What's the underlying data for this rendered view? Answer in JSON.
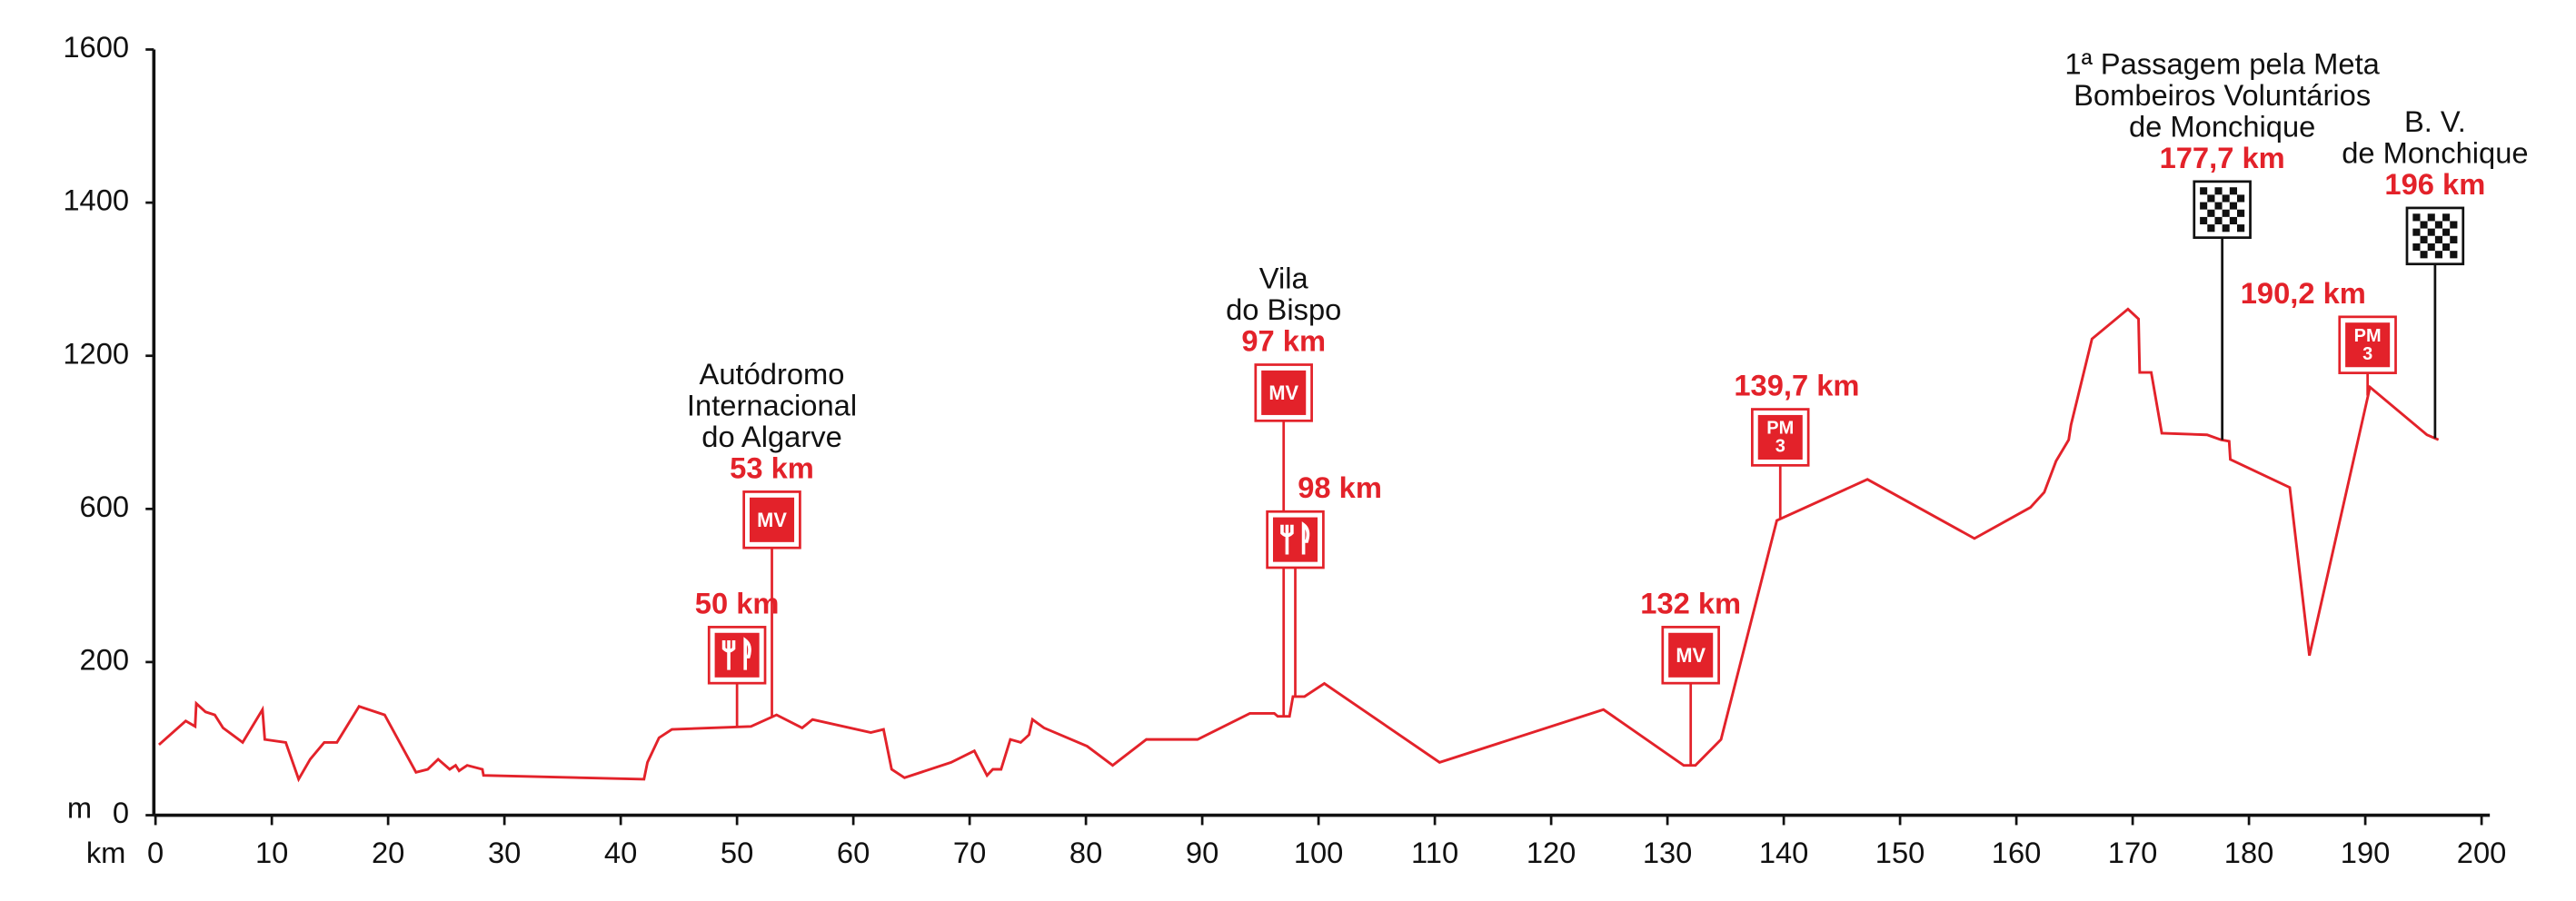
{
  "chart_data": {
    "type": "line",
    "color": "#e3222a",
    "y_label": "m",
    "x_label": "km",
    "ylim": [
      0,
      1600
    ],
    "yticks": [
      0,
      200,
      600,
      1200,
      1400,
      1600
    ],
    "xlim": [
      0,
      200
    ],
    "xticks": [
      0,
      10,
      20,
      30,
      40,
      50,
      60,
      70,
      80,
      90,
      100,
      110,
      120,
      130,
      140,
      150,
      160,
      170,
      180,
      190,
      200
    ],
    "x": [
      0.3,
      2.6,
      3.4,
      3.5,
      4.3,
      5.1,
      5.8,
      7.5,
      9.2,
      9.4,
      11.2,
      12.3,
      13.3,
      14.5,
      15.6,
      17.5,
      19.7,
      22.4,
      23.4,
      24.3,
      25.3,
      25.8,
      26.1,
      26.8,
      28.1,
      28.2,
      42.0,
      42.3,
      43.3,
      44.4,
      51.2,
      53.4,
      55.6,
      56.5,
      61.5,
      62.6,
      63.3,
      64.4,
      68.4,
      70.4,
      71.5,
      72.0,
      72.7,
      73.5,
      74.4,
      75.1,
      75.4,
      76.4,
      80.1,
      82.3,
      85.2,
      89.6,
      94.1,
      96.2,
      96.5,
      97.5,
      97.8,
      98.8,
      100.5,
      110.4,
      124.5,
      131.4,
      132.4,
      134.6,
      139.4,
      147.2,
      156.4,
      161.2,
      162.4,
      163.4,
      164.5,
      164.7,
      166.5,
      169.6,
      170.5,
      170.6,
      171.6,
      172.5,
      176.4,
      177.6,
      178.3,
      178.4,
      183.5,
      185.2,
      190.4,
      195.3,
      196.3
    ],
    "values": [
      92,
      123,
      116,
      146,
      135,
      131,
      114,
      95,
      138,
      99,
      95,
      47,
      73,
      95,
      95,
      142,
      131,
      56,
      60,
      73,
      60,
      65,
      58,
      65,
      60,
      52,
      47,
      69,
      101,
      112,
      116,
      131,
      114,
      125,
      108,
      112,
      60,
      49,
      69,
      84,
      52,
      60,
      60,
      99,
      95,
      105,
      125,
      114,
      90,
      65,
      99,
      99,
      133,
      133,
      129,
      129,
      155,
      155,
      172,
      69,
      138,
      65,
      65,
      99,
      570,
      716,
      523,
      606,
      665,
      787,
      871,
      929,
      1222,
      1261,
      1248,
      1135,
      1135,
      897,
      890,
      871,
      865,
      794,
      684,
      217,
      1077,
      890,
      871
    ],
    "markers": [
      {
        "km": 50,
        "label": "50 km",
        "symbol": "food"
      },
      {
        "km": 53,
        "label": "53 km",
        "badge": [
          "MV"
        ],
        "names": [
          "Autódromo",
          "Internacional",
          "do Algarve"
        ]
      },
      {
        "km": 97,
        "label": "97 km",
        "badge": [
          "MV"
        ],
        "names": [
          "Vila",
          "do Bispo"
        ]
      },
      {
        "km": 98,
        "label": "98 km",
        "symbol": "food"
      },
      {
        "km": 132,
        "label": "132 km",
        "badge": [
          "MV"
        ]
      },
      {
        "km": 139.7,
        "label": "139,7 km",
        "badge": [
          "PM",
          "3"
        ]
      },
      {
        "km": 177.7,
        "label": "177,7 km",
        "symbol": "flag",
        "names": [
          "1ª Passagem pela Meta",
          "Bombeiros Voluntários",
          "de Monchique"
        ]
      },
      {
        "km": 190.2,
        "label": "190,2 km",
        "badge": [
          "PM",
          "3"
        ]
      },
      {
        "km": 196,
        "label": "196 km",
        "symbol": "flag",
        "names": [
          "B. V.",
          "de Monchique"
        ]
      }
    ]
  }
}
